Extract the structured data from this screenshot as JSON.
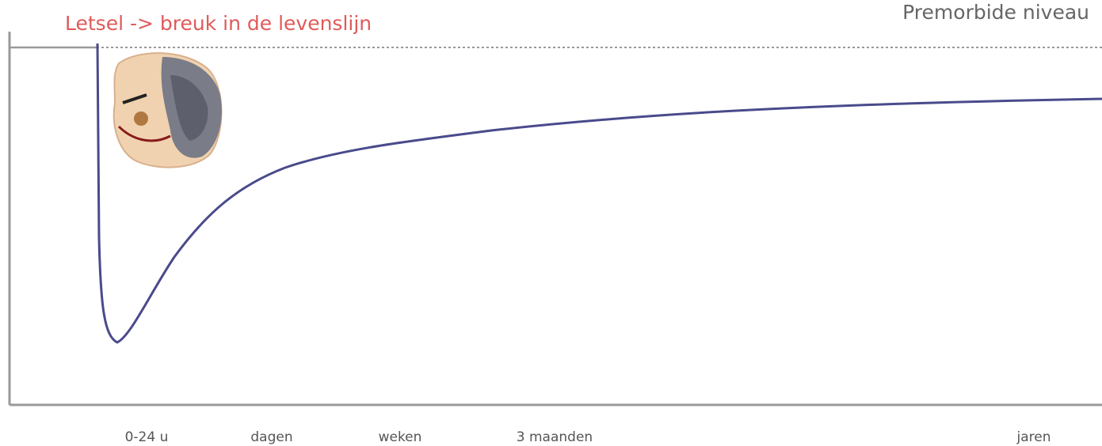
{
  "title": "Letsel -> breuk in de levenslijn",
  "reference_label": "Premorbide niveau",
  "x_labels": [
    "0-24 u",
    "dagen",
    "weken",
    "3 maanden",
    "jaren"
  ]
}
